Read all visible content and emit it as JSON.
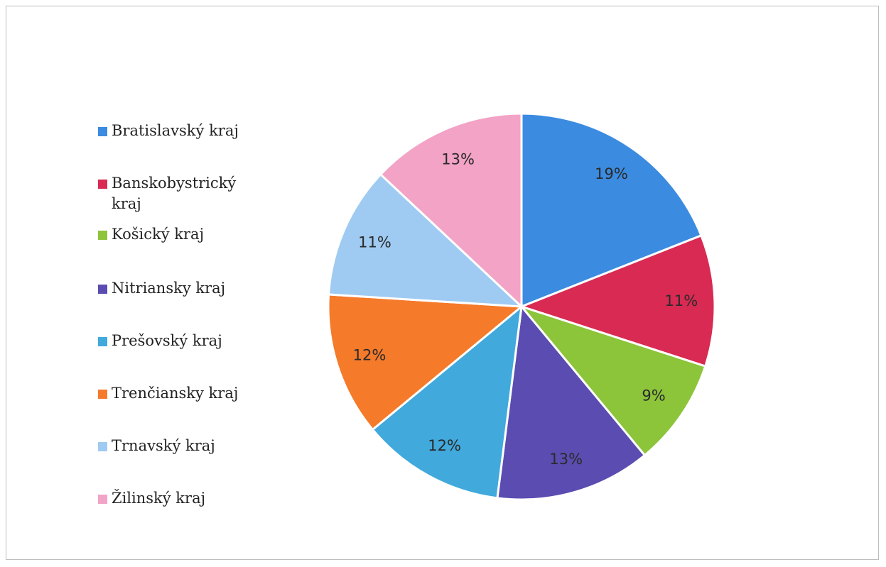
{
  "chart_data": {
    "type": "pie",
    "categories": [
      "Bratislavský kraj",
      "Banskobystrický kraj",
      "Košický kraj",
      "Nitriansky kraj",
      "Prešovský kraj",
      "Trenčiansky kraj",
      "Trnavský kraj",
      "Žilinský kraj"
    ],
    "values": [
      19,
      11,
      9,
      13,
      12,
      12,
      11,
      13
    ],
    "data_labels": [
      "19%",
      "11%",
      "9%",
      "13%",
      "12%",
      "12%",
      "11%",
      "13%"
    ],
    "colors": [
      "#3b8be0",
      "#d82a52",
      "#8cc43a",
      "#5a4cb0",
      "#41a9dc",
      "#f57a2a",
      "#9fcbf2",
      "#f2a3c6"
    ],
    "legend_position": "left"
  }
}
